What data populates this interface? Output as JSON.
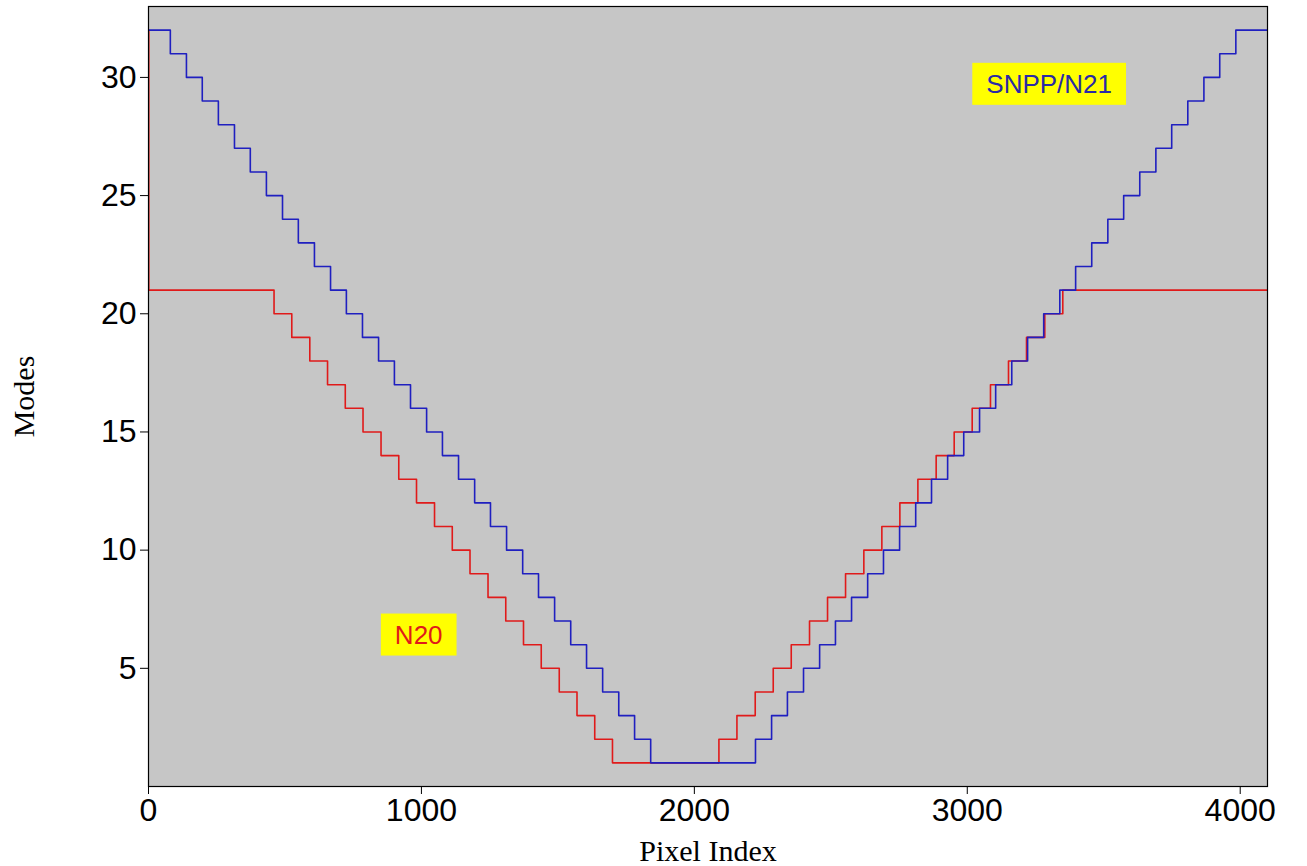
{
  "chart_data": {
    "type": "step",
    "x_label": "Pixel Index",
    "y_label": "Modes",
    "xlim": [
      0,
      4100
    ],
    "ylim": [
      0,
      33
    ],
    "xticks": [
      0,
      1000,
      2000,
      3000,
      4000
    ],
    "yticks": [
      5,
      10,
      15,
      20,
      25,
      30
    ],
    "grid": false,
    "series": [
      {
        "name": "N20",
        "color": "#e01a1a",
        "x": [
          0,
          1,
          460,
          525,
          591,
          656,
          721,
          786,
          852,
          917,
          982,
          1048,
          1113,
          1178,
          1244,
          1309,
          1374,
          1439,
          1505,
          1570,
          1635,
          1700,
          2090,
          2156,
          2223,
          2289,
          2355,
          2422,
          2488,
          2554,
          2621,
          2687,
          2753,
          2819,
          2886,
          2952,
          3018,
          3085,
          3151,
          3217,
          3284,
          3350,
          4100
        ],
        "values": [
          32,
          21,
          20,
          19,
          18,
          17,
          16,
          15,
          14,
          13,
          12,
          11,
          10,
          9,
          8,
          7,
          6,
          5,
          4,
          3,
          2,
          1,
          2,
          3,
          4,
          5,
          6,
          7,
          8,
          9,
          10,
          11,
          12,
          13,
          14,
          15,
          16,
          17,
          18,
          19,
          20,
          21,
          21
        ]
      },
      {
        "name": "SNPP/N21",
        "color": "#1f1fc0",
        "x": [
          0,
          80,
          139,
          197,
          256,
          315,
          373,
          432,
          491,
          549,
          608,
          667,
          725,
          784,
          843,
          901,
          960,
          1019,
          1077,
          1136,
          1195,
          1253,
          1312,
          1371,
          1429,
          1488,
          1547,
          1605,
          1664,
          1723,
          1781,
          1840,
          2224,
          2283,
          2341,
          2400,
          2459,
          2517,
          2576,
          2635,
          2693,
          2752,
          2811,
          2869,
          2928,
          2987,
          3045,
          3104,
          3163,
          3221,
          3280,
          3339,
          3397,
          3456,
          3515,
          3573,
          3632,
          3691,
          3749,
          3808,
          3867,
          3925,
          3984,
          4100
        ],
        "values": [
          32,
          31,
          30,
          29,
          28,
          27,
          26,
          25,
          24,
          23,
          22,
          21,
          20,
          19,
          18,
          17,
          16,
          15,
          14,
          13,
          12,
          11,
          10,
          9,
          8,
          7,
          6,
          5,
          4,
          3,
          2,
          1,
          2,
          3,
          4,
          5,
          6,
          7,
          8,
          9,
          10,
          11,
          12,
          13,
          14,
          15,
          16,
          17,
          18,
          19,
          20,
          21,
          22,
          23,
          24,
          25,
          26,
          27,
          28,
          29,
          30,
          31,
          32,
          32
        ]
      }
    ],
    "annotations": [
      {
        "text": "N20",
        "x": 990,
        "y": 6.4,
        "color": "#e01a1a"
      },
      {
        "text": "SNPP/N21",
        "x": 3300,
        "y": 29.7,
        "color": "#2a2aa6"
      }
    ]
  }
}
